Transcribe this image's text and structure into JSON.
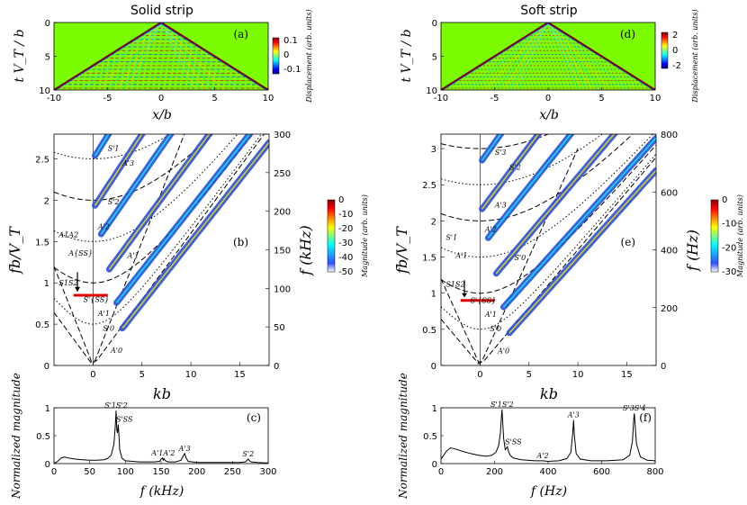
{
  "titles": {
    "left": "Solid strip",
    "right": "Soft strip"
  },
  "axis_labels": {
    "tV": "t V_T / b",
    "xb": "x/b",
    "fbV": "fb/V_T",
    "kb": "kb",
    "f_khz": "f (kHz)",
    "f_hz": "f (Hz)",
    "norm_mag": "Normalized magnitude"
  },
  "panel_labels": {
    "a": "(a)",
    "b": "(b)",
    "c": "(c)",
    "d": "(d)",
    "e": "(e)",
    "f": "(f)"
  },
  "colorbars": {
    "disp_solid": {
      "label": "Displacement (arb. units)",
      "ticks": [
        "0.1",
        "0",
        "-0.1"
      ]
    },
    "mag_solid": {
      "label": "Magnitude (arb. units)",
      "ticks": [
        "0",
        "-10",
        "-20",
        "-30",
        "-40",
        "-50"
      ]
    },
    "disp_soft": {
      "label": "Displacement (arb. units)",
      "ticks": [
        "2",
        "0",
        "-2"
      ]
    },
    "mag_soft": {
      "label": "Magnitude (arb. units)",
      "ticks": [
        "0",
        "-10",
        "-20",
        "-30"
      ]
    }
  },
  "colors": {
    "field_bg": "#7cfc00",
    "wave_red": "#d00000",
    "wave_blue": "#1040e0",
    "contour_blue": "#2850d8"
  },
  "chart_data": [
    {
      "id": "a",
      "type": "heatmap",
      "title": "Solid strip",
      "xlabel": "x/b",
      "ylabel": "t V_T/b",
      "xlim": [
        -10,
        10
      ],
      "ylim": [
        0,
        10
      ],
      "xticks": [
        "-10",
        "-5",
        "0",
        "5",
        "10"
      ],
      "yticks": [
        "0",
        "5",
        "10"
      ],
      "colorbar": {
        "range": [
          -0.1,
          0.1
        ],
        "ticks": [
          "0.1",
          "0",
          "-0.1"
        ]
      }
    },
    {
      "id": "d",
      "type": "heatmap",
      "title": "Soft strip",
      "xlabel": "x/b",
      "ylabel": "t V_T/b",
      "xlim": [
        -10,
        10
      ],
      "ylim": [
        0,
        10
      ],
      "xticks": [
        "-10",
        "-5",
        "0",
        "5",
        "10"
      ],
      "yticks": [
        "0",
        "5",
        "10"
      ],
      "colorbar": {
        "range": [
          -2,
          2
        ],
        "ticks": [
          "2",
          "0",
          "-2"
        ]
      }
    },
    {
      "id": "b",
      "type": "heatmap",
      "xlabel": "kb",
      "ylabel": "fb/V_T",
      "ylabel_right": "f (kHz)",
      "xlim": [
        -4,
        18
      ],
      "ylim": [
        0,
        2.8
      ],
      "ylim_right": [
        0,
        300
      ],
      "xticks": [
        "0",
        "5",
        "10",
        "15"
      ],
      "yticks": [
        "0",
        "0.5",
        "1",
        "1.5",
        "2",
        "2.5"
      ],
      "yticks_right": [
        "0",
        "50",
        "100",
        "150",
        "200",
        "250",
        "300"
      ],
      "mode_labels": [
        "S'_1",
        "A'_3",
        "S'_2",
        "A'_2",
        "A_1A_2",
        "A_{SS}",
        "A'_1",
        "S_1S_2",
        "S'_{SS}",
        "A'_1",
        "S'_0",
        "A'_0"
      ],
      "colorbar": {
        "range": [
          -50,
          0
        ],
        "ticks": [
          "0",
          "-10",
          "-20",
          "-30",
          "-40",
          "-50"
        ]
      }
    },
    {
      "id": "e",
      "type": "heatmap",
      "xlabel": "kb",
      "ylabel": "fb/V_T",
      "ylabel_right": "f (Hz)",
      "xlim": [
        -4,
        18
      ],
      "ylim": [
        0,
        3.2
      ],
      "ylim_right": [
        0,
        800
      ],
      "xticks": [
        "0",
        "5",
        "10",
        "15"
      ],
      "yticks": [
        "0",
        "0.5",
        "1",
        "1.5",
        "2",
        "2.5",
        "3"
      ],
      "yticks_right": [
        "0",
        "200",
        "400",
        "600",
        "800"
      ],
      "mode_labels": [
        "S'_3",
        "S'_2",
        "A'_3",
        "A'_2",
        "S'_1",
        "A'_1",
        "S'_0",
        "S_1S_2",
        "S'_{SS}",
        "A'_1",
        "S'_0",
        "A'_0"
      ],
      "colorbar": {
        "range": [
          -30,
          0
        ],
        "ticks": [
          "0",
          "-10",
          "-20",
          "-30"
        ]
      }
    },
    {
      "id": "c",
      "type": "line",
      "xlabel": "f (kHz)",
      "ylabel": "Normalized magnitude",
      "xlim": [
        0,
        300
      ],
      "ylim": [
        0,
        1
      ],
      "xticks": [
        "0",
        "50",
        "100",
        "150",
        "200",
        "250",
        "300"
      ],
      "yticks": [
        "0",
        "0.5",
        "1"
      ],
      "peaks": [
        {
          "label": "S'_1S'_2",
          "f": 87,
          "value": 0.95
        },
        {
          "label": "S'_{SS}",
          "f": 91,
          "value": 0.7
        },
        {
          "label": "A'_1A'_2",
          "f": 153,
          "value": 0.1
        },
        {
          "label": "A'_3",
          "f": 183,
          "value": 0.18
        },
        {
          "label": "S'_2",
          "f": 272,
          "value": 0.08
        }
      ],
      "series": [
        {
          "name": "spectrum",
          "x": [
            0,
            5,
            10,
            15,
            20,
            30,
            40,
            50,
            60,
            70,
            75,
            80,
            84,
            86,
            87,
            88,
            89,
            90,
            91,
            92,
            95,
            100,
            110,
            120,
            130,
            140,
            148,
            150,
            152,
            153,
            154,
            156,
            160,
            170,
            178,
            181,
            183,
            185,
            188,
            200,
            220,
            240,
            260,
            268,
            271,
            272,
            273,
            276,
            285,
            300
          ],
          "values": [
            0,
            0.04,
            0.1,
            0.12,
            0.1,
            0.08,
            0.07,
            0.06,
            0.06,
            0.07,
            0.09,
            0.15,
            0.35,
            0.7,
            0.95,
            0.6,
            0.55,
            0.7,
            0.5,
            0.25,
            0.1,
            0.05,
            0.04,
            0.03,
            0.03,
            0.03,
            0.04,
            0.08,
            0.1,
            0.06,
            0.09,
            0.05,
            0.03,
            0.03,
            0.06,
            0.14,
            0.18,
            0.1,
            0.04,
            0.02,
            0.02,
            0.02,
            0.02,
            0.03,
            0.07,
            0.08,
            0.06,
            0.03,
            0.02,
            0.01
          ]
        }
      ]
    },
    {
      "id": "f",
      "type": "line",
      "xlabel": "f (Hz)",
      "ylabel": "Normalized magnitude",
      "xlim": [
        0,
        800
      ],
      "ylim": [
        0,
        1
      ],
      "xticks": [
        "0",
        "200",
        "400",
        "600",
        "800"
      ],
      "yticks": [
        "0",
        "0.5",
        "1"
      ],
      "peaks": [
        {
          "label": "S'_1S'_2",
          "f": 228,
          "value": 0.97
        },
        {
          "label": "S'_{SS}",
          "f": 250,
          "value": 0.3
        },
        {
          "label": "A'_2",
          "f": 380,
          "value": 0.05
        },
        {
          "label": "A'_3",
          "f": 495,
          "value": 0.78
        },
        {
          "label": "S'_3S'_4",
          "f": 722,
          "value": 0.9
        }
      ],
      "series": [
        {
          "name": "spectrum",
          "x": [
            0,
            10,
            20,
            35,
            50,
            80,
            110,
            140,
            170,
            190,
            205,
            215,
            222,
            226,
            228,
            230,
            234,
            240,
            248,
            252,
            258,
            270,
            300,
            350,
            380,
            400,
            440,
            470,
            485,
            492,
            495,
            498,
            505,
            520,
            560,
            620,
            680,
            705,
            715,
            720,
            722,
            725,
            730,
            745,
            770,
            800
          ],
          "values": [
            0.08,
            0.15,
            0.22,
            0.28,
            0.27,
            0.22,
            0.18,
            0.15,
            0.13,
            0.15,
            0.2,
            0.32,
            0.55,
            0.85,
            0.97,
            0.8,
            0.45,
            0.25,
            0.3,
            0.22,
            0.15,
            0.1,
            0.07,
            0.05,
            0.05,
            0.04,
            0.05,
            0.09,
            0.2,
            0.55,
            0.78,
            0.5,
            0.18,
            0.08,
            0.05,
            0.05,
            0.07,
            0.15,
            0.4,
            0.8,
            0.9,
            0.7,
            0.35,
            0.12,
            0.06,
            0.05
          ]
        }
      ]
    }
  ]
}
